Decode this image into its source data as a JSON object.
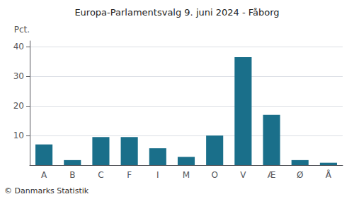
{
  "chart_data": {
    "type": "bar",
    "title": "Europa-Parlamentsvalg 9. juni 2024 - Fåborg",
    "categories": [
      "A",
      "B",
      "C",
      "F",
      "I",
      "M",
      "O",
      "V",
      "Æ",
      "Ø",
      "Å"
    ],
    "values": [
      7.0,
      1.7,
      9.5,
      9.5,
      5.7,
      2.8,
      10.0,
      36.5,
      17.0,
      1.7,
      0.8
    ],
    "color": "#1a6f8a",
    "ylabel": "Pct.",
    "annotation": "© Danmarks Statistik",
    "ylim": [
      0,
      42
    ],
    "yticks": [
      10,
      20,
      30,
      40
    ],
    "grid": true
  }
}
